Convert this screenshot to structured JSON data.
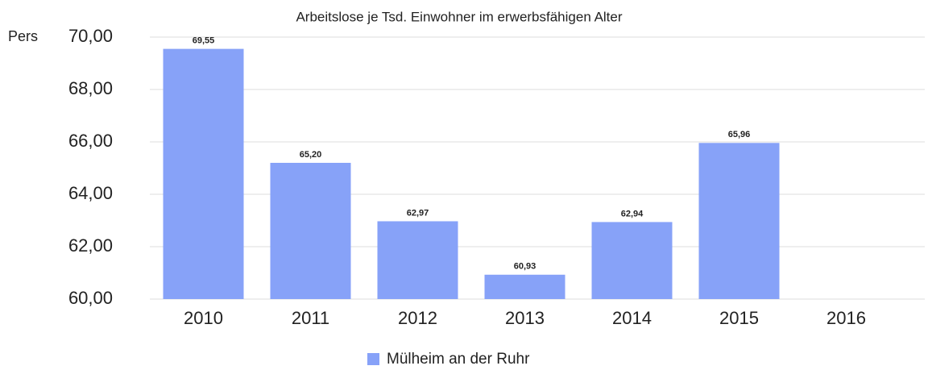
{
  "chart_data": {
    "type": "bar",
    "title": "Arbeitslose je Tsd. Einwohner im erwerbsfähigen Alter",
    "y_label": "Pers",
    "categories": [
      "2010",
      "2011",
      "2012",
      "2013",
      "2014",
      "2015",
      "2016"
    ],
    "series": [
      {
        "name": "Mülheim an der Ruhr",
        "color": "#87a2f8",
        "values": [
          69.55,
          65.2,
          62.97,
          60.93,
          62.94,
          65.96,
          null
        ],
        "value_labels": [
          "69,55",
          "65,20",
          "62,97",
          "60,93",
          "62,94",
          "65,96",
          null
        ]
      }
    ],
    "ylim": [
      60,
      70
    ],
    "yticks": [
      {
        "value": 60,
        "label": "60,00"
      },
      {
        "value": 62,
        "label": "62,00"
      },
      {
        "value": 64,
        "label": "64,00"
      },
      {
        "value": 66,
        "label": "66,00"
      },
      {
        "value": 68,
        "label": "68,00"
      },
      {
        "value": 70,
        "label": "70,00"
      }
    ],
    "grid": true,
    "legend": "bottom"
  }
}
